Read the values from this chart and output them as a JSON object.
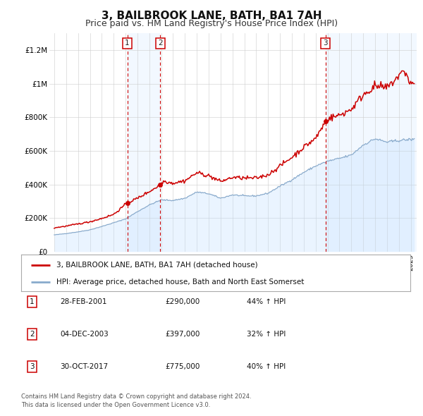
{
  "title": "3, BAILBROOK LANE, BATH, BA1 7AH",
  "subtitle": "Price paid vs. HM Land Registry's House Price Index (HPI)",
  "title_fontsize": 11,
  "subtitle_fontsize": 9,
  "background_color": "#ffffff",
  "plot_bg_color": "#ffffff",
  "grid_color": "#cccccc",
  "sale_color": "#cc0000",
  "hpi_color": "#88aacc",
  "hpi_fill_color": "#ddeeff",
  "ylim": [
    0,
    1300000
  ],
  "yticks": [
    0,
    200000,
    400000,
    600000,
    800000,
    1000000,
    1200000
  ],
  "ytick_labels": [
    "£0",
    "£200K",
    "£400K",
    "£600K",
    "£800K",
    "£1M",
    "£1.2M"
  ],
  "purchases": [
    {
      "label": "1",
      "date": "28-FEB-2001",
      "year": 2001.15,
      "price": 290000,
      "hpi_pct": "44%",
      "arrow": "↑"
    },
    {
      "label": "2",
      "date": "04-DEC-2003",
      "year": 2003.92,
      "price": 397000,
      "hpi_pct": "32%",
      "arrow": "↑"
    },
    {
      "label": "3",
      "date": "30-OCT-2017",
      "year": 2017.83,
      "price": 775000,
      "hpi_pct": "40%",
      "arrow": "↑"
    }
  ],
  "legend_line1": "3, BAILBROOK LANE, BATH, BA1 7AH (detached house)",
  "legend_line2": "HPI: Average price, detached house, Bath and North East Somerset",
  "footer1": "Contains HM Land Registry data © Crown copyright and database right 2024.",
  "footer2": "This data is licensed under the Open Government Licence v3.0."
}
